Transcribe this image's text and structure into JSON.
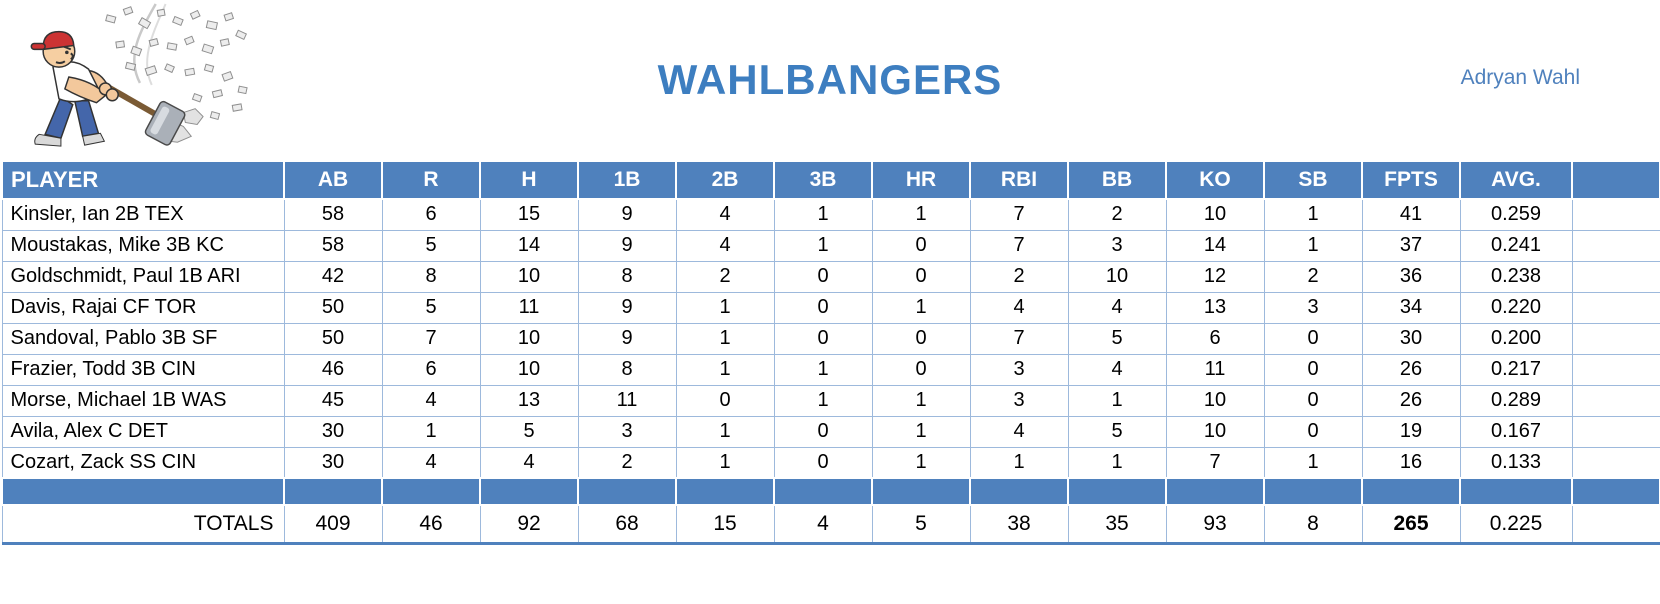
{
  "header": {
    "title": "WAHLBANGERS",
    "owner": "Adryan Wahl"
  },
  "logo": {
    "description": "cartoon man in red cap smashing rocks with sledgehammer, debris flying"
  },
  "colors": {
    "header_bg": "#4f81bd",
    "title_blue": "#3d7ec0",
    "grid_blue": "#9db9dc"
  },
  "table": {
    "columns": [
      "PLAYER",
      "AB",
      "R",
      "H",
      "1B",
      "2B",
      "3B",
      "HR",
      "RBI",
      "BB",
      "KO",
      "SB",
      "FPTS",
      "AVG."
    ],
    "rows": [
      {
        "player": "Kinsler, Ian 2B TEX",
        "stats": [
          "58",
          "6",
          "15",
          "9",
          "4",
          "1",
          "1",
          "7",
          "2",
          "10",
          "1",
          "41",
          "0.259"
        ]
      },
      {
        "player": "Moustakas, Mike 3B KC",
        "stats": [
          "58",
          "5",
          "14",
          "9",
          "4",
          "1",
          "0",
          "7",
          "3",
          "14",
          "1",
          "37",
          "0.241"
        ]
      },
      {
        "player": "Goldschmidt, Paul 1B ARI",
        "stats": [
          "42",
          "8",
          "10",
          "8",
          "2",
          "0",
          "0",
          "2",
          "10",
          "12",
          "2",
          "36",
          "0.238"
        ]
      },
      {
        "player": "Davis, Rajai CF TOR",
        "stats": [
          "50",
          "5",
          "11",
          "9",
          "1",
          "0",
          "1",
          "4",
          "4",
          "13",
          "3",
          "34",
          "0.220"
        ]
      },
      {
        "player": "Sandoval, Pablo 3B SF",
        "stats": [
          "50",
          "7",
          "10",
          "9",
          "1",
          "0",
          "0",
          "7",
          "5",
          "6",
          "0",
          "30",
          "0.200"
        ]
      },
      {
        "player": "Frazier, Todd 3B CIN",
        "stats": [
          "46",
          "6",
          "10",
          "8",
          "1",
          "1",
          "0",
          "3",
          "4",
          "11",
          "0",
          "26",
          "0.217"
        ]
      },
      {
        "player": "Morse, Michael 1B WAS",
        "stats": [
          "45",
          "4",
          "13",
          "11",
          "0",
          "1",
          "1",
          "3",
          "1",
          "10",
          "0",
          "26",
          "0.289"
        ]
      },
      {
        "player": "Avila, Alex C DET",
        "stats": [
          "30",
          "1",
          "5",
          "3",
          "1",
          "0",
          "1",
          "4",
          "5",
          "10",
          "0",
          "19",
          "0.167"
        ]
      },
      {
        "player": "Cozart, Zack SS CIN",
        "stats": [
          "30",
          "4",
          "4",
          "2",
          "1",
          "0",
          "1",
          "1",
          "1",
          "7",
          "1",
          "16",
          "0.133"
        ]
      }
    ],
    "totals_label": "TOTALS",
    "totals": [
      "409",
      "46",
      "92",
      "68",
      "15",
      "4",
      "5",
      "38",
      "35",
      "93",
      "8",
      "265",
      "0.225"
    ]
  }
}
